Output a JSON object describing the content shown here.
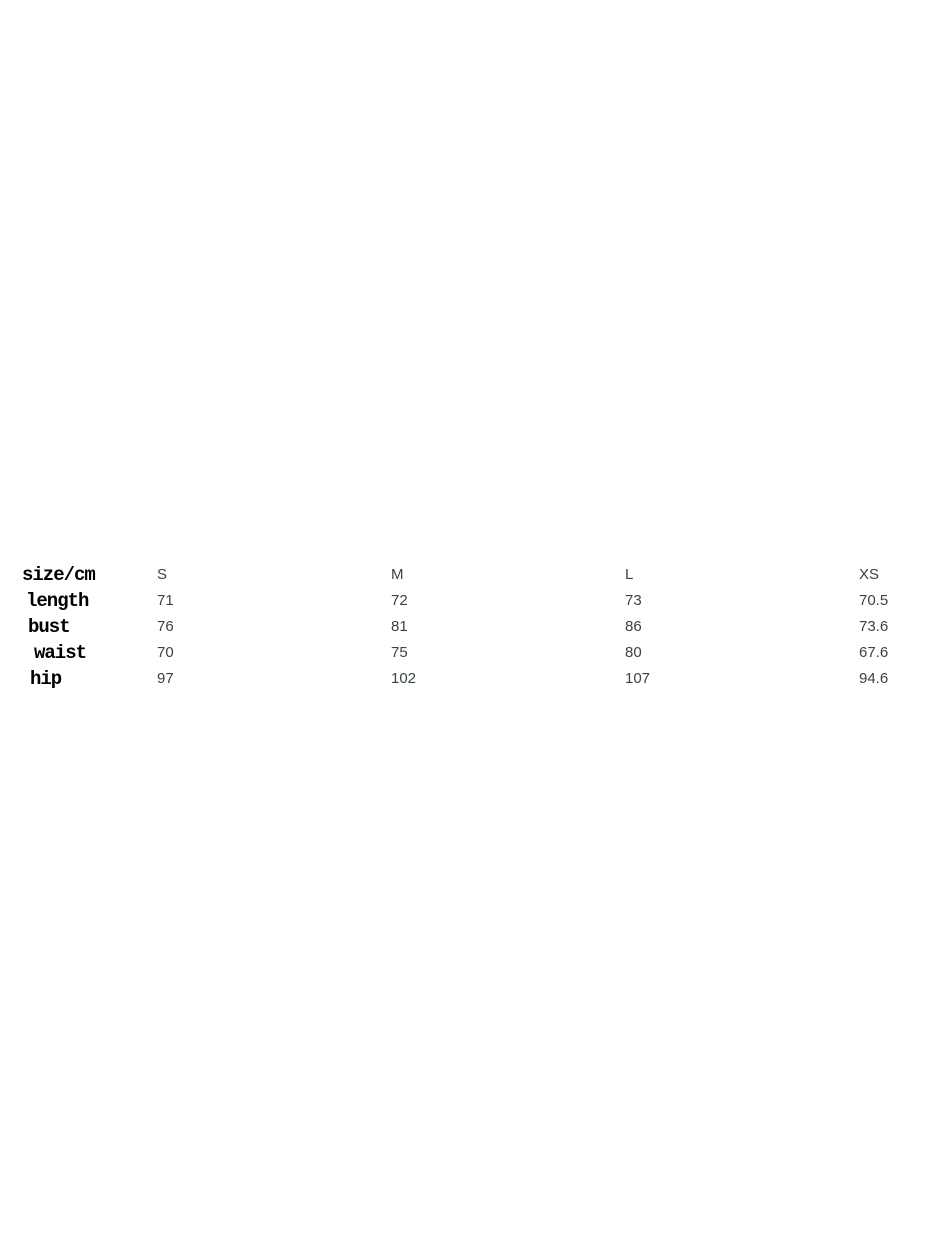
{
  "chart_data": {
    "type": "table",
    "title": "size/cm",
    "columns": [
      "S",
      "M",
      "L",
      "XS"
    ],
    "rows": [
      {
        "label": "length",
        "values": [
          "71",
          "72",
          "73",
          "70.5"
        ]
      },
      {
        "label": "bust",
        "values": [
          "76",
          "81",
          "86",
          "73.6"
        ]
      },
      {
        "label": "waist",
        "values": [
          "70",
          "75",
          "80",
          "67.6"
        ]
      },
      {
        "label": "hip",
        "values": [
          "97",
          "102",
          "107",
          "94.6"
        ]
      }
    ],
    "layout": "white page, table only content, no gridlines, left-aligned label column with four size columns"
  },
  "table": {
    "corner_label": "size/cm",
    "headers": [
      "S",
      "M",
      "L",
      "XS"
    ],
    "rows": [
      {
        "label": "length",
        "values": [
          "71",
          "72",
          "73",
          "70.5"
        ]
      },
      {
        "label": "bust",
        "values": [
          "76",
          "81",
          "86",
          "73.6"
        ]
      },
      {
        "label": "waist",
        "values": [
          "70",
          "75",
          "80",
          "67.6"
        ]
      },
      {
        "label": "hip",
        "values": [
          "97",
          "102",
          "107",
          "94.6"
        ]
      }
    ]
  },
  "colors": {
    "background": "#ffffff",
    "label_text": "#000000",
    "value_text": "#394249"
  }
}
